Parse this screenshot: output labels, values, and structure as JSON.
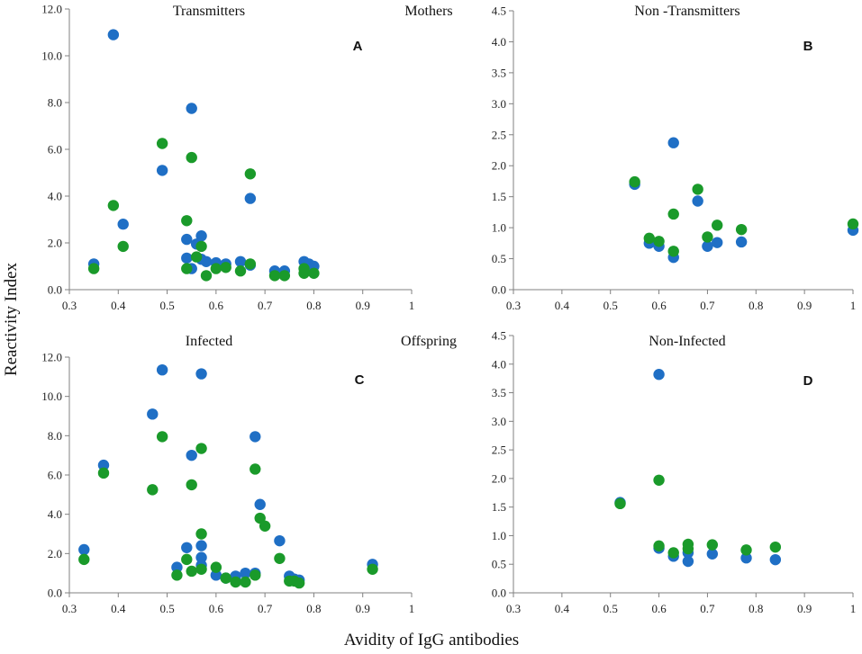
{
  "figure": {
    "ylabel": "Reactivity Index",
    "xlabel": "Avidity of IgG antibodies"
  },
  "colors": {
    "blue": "#1f6fc5",
    "green": "#1a9a2a",
    "axis": "#808080"
  },
  "chart_data": [
    {
      "type": "scatter",
      "letter": "A",
      "title_left": "Transmitters",
      "title_right": "Mothers",
      "xlim": [
        0.3,
        1.0
      ],
      "xticks": [
        "0.3",
        "0.4",
        "0.5",
        "0.6",
        "0.7",
        "0.8",
        "0.9",
        "1"
      ],
      "ylim": [
        0,
        12
      ],
      "yticks": [
        "0.0",
        "2.0",
        "4.0",
        "6.0",
        "8.0",
        "10.0",
        "12.0"
      ],
      "series": [
        {
          "name": "blue",
          "points": [
            [
              0.35,
              1.1
            ],
            [
              0.39,
              10.9
            ],
            [
              0.41,
              2.8
            ],
            [
              0.49,
              5.1
            ],
            [
              0.54,
              2.15
            ],
            [
              0.54,
              1.35
            ],
            [
              0.55,
              7.75
            ],
            [
              0.55,
              0.9
            ],
            [
              0.56,
              1.95
            ],
            [
              0.57,
              2.3
            ],
            [
              0.57,
              1.3
            ],
            [
              0.58,
              1.2
            ],
            [
              0.6,
              1.15
            ],
            [
              0.62,
              1.1
            ],
            [
              0.65,
              1.2
            ],
            [
              0.67,
              3.9
            ],
            [
              0.67,
              1.05
            ],
            [
              0.72,
              0.8
            ],
            [
              0.74,
              0.8
            ],
            [
              0.78,
              1.2
            ],
            [
              0.79,
              1.1
            ],
            [
              0.8,
              1.0
            ]
          ]
        },
        {
          "name": "green",
          "points": [
            [
              0.35,
              0.9
            ],
            [
              0.39,
              3.6
            ],
            [
              0.41,
              1.85
            ],
            [
              0.49,
              6.25
            ],
            [
              0.54,
              2.95
            ],
            [
              0.54,
              0.9
            ],
            [
              0.55,
              5.65
            ],
            [
              0.56,
              1.4
            ],
            [
              0.57,
              1.85
            ],
            [
              0.58,
              0.6
            ],
            [
              0.6,
              0.9
            ],
            [
              0.62,
              0.95
            ],
            [
              0.65,
              0.8
            ],
            [
              0.67,
              4.95
            ],
            [
              0.67,
              1.1
            ],
            [
              0.72,
              0.6
            ],
            [
              0.74,
              0.6
            ],
            [
              0.78,
              0.7
            ],
            [
              0.78,
              0.9
            ],
            [
              0.8,
              0.7
            ]
          ]
        }
      ]
    },
    {
      "type": "scatter",
      "letter": "B",
      "title_left": "Non -Transmitters",
      "title_right": "",
      "xlim": [
        0.3,
        1.0
      ],
      "xticks": [
        "0.3",
        "0.4",
        "0.5",
        "0.6",
        "0.7",
        "0.8",
        "0.9",
        "1"
      ],
      "ylim": [
        0,
        4.5
      ],
      "yticks": [
        "0.0",
        "0.5",
        "1.0",
        "1.5",
        "2.0",
        "2.5",
        "3.0",
        "3.5",
        "4.0",
        "4.5"
      ],
      "series": [
        {
          "name": "blue",
          "points": [
            [
              0.55,
              1.7
            ],
            [
              0.58,
              0.75
            ],
            [
              0.6,
              0.7
            ],
            [
              0.63,
              2.37
            ],
            [
              0.63,
              0.52
            ],
            [
              0.68,
              1.43
            ],
            [
              0.7,
              0.7
            ],
            [
              0.72,
              0.76
            ],
            [
              0.77,
              0.77
            ],
            [
              1.0,
              0.96
            ]
          ]
        },
        {
          "name": "green",
          "points": [
            [
              0.55,
              1.74
            ],
            [
              0.58,
              0.83
            ],
            [
              0.6,
              0.78
            ],
            [
              0.63,
              1.22
            ],
            [
              0.63,
              0.62
            ],
            [
              0.68,
              1.62
            ],
            [
              0.7,
              0.85
            ],
            [
              0.72,
              1.04
            ],
            [
              0.77,
              0.97
            ],
            [
              1.0,
              1.06
            ]
          ]
        }
      ]
    },
    {
      "type": "scatter",
      "letter": "C",
      "title_left": "Infected",
      "title_right": "Offspring",
      "xlim": [
        0.3,
        1.0
      ],
      "xticks": [
        "0.3",
        "0.4",
        "0.5",
        "0.6",
        "0.7",
        "0.8",
        "0.9",
        "1"
      ],
      "ylim": [
        0,
        12
      ],
      "yticks": [
        "0.0",
        "2.0",
        "4.0",
        "6.0",
        "8.0",
        "10.0",
        "12.0"
      ],
      "series": [
        {
          "name": "blue",
          "points": [
            [
              0.33,
              2.2
            ],
            [
              0.37,
              6.5
            ],
            [
              0.47,
              9.1
            ],
            [
              0.49,
              11.35
            ],
            [
              0.52,
              1.3
            ],
            [
              0.54,
              2.3
            ],
            [
              0.55,
              7.0
            ],
            [
              0.57,
              11.15
            ],
            [
              0.57,
              2.4
            ],
            [
              0.57,
              1.8
            ],
            [
              0.57,
              1.4
            ],
            [
              0.6,
              0.9
            ],
            [
              0.62,
              0.75
            ],
            [
              0.64,
              0.85
            ],
            [
              0.66,
              1.0
            ],
            [
              0.68,
              7.95
            ],
            [
              0.68,
              1.0
            ],
            [
              0.69,
              4.5
            ],
            [
              0.73,
              2.65
            ],
            [
              0.75,
              0.85
            ],
            [
              0.76,
              0.7
            ],
            [
              0.77,
              0.65
            ],
            [
              0.92,
              1.45
            ]
          ]
        },
        {
          "name": "green",
          "points": [
            [
              0.33,
              1.7
            ],
            [
              0.37,
              6.1
            ],
            [
              0.47,
              5.25
            ],
            [
              0.49,
              7.95
            ],
            [
              0.52,
              0.9
            ],
            [
              0.54,
              1.7
            ],
            [
              0.55,
              5.5
            ],
            [
              0.55,
              1.1
            ],
            [
              0.57,
              7.35
            ],
            [
              0.57,
              3.0
            ],
            [
              0.57,
              1.2
            ],
            [
              0.6,
              1.3
            ],
            [
              0.62,
              0.75
            ],
            [
              0.64,
              0.55
            ],
            [
              0.66,
              0.55
            ],
            [
              0.68,
              6.3
            ],
            [
              0.68,
              0.9
            ],
            [
              0.69,
              3.8
            ],
            [
              0.7,
              3.4
            ],
            [
              0.73,
              1.75
            ],
            [
              0.75,
              0.6
            ],
            [
              0.76,
              0.6
            ],
            [
              0.77,
              0.5
            ],
            [
              0.92,
              1.2
            ]
          ]
        }
      ]
    },
    {
      "type": "scatter",
      "letter": "D",
      "title_left": "Non-Infected",
      "title_right": "",
      "xlim": [
        0.3,
        1.0
      ],
      "xticks": [
        "0.3",
        "0.4",
        "0.5",
        "0.6",
        "0.7",
        "0.8",
        "0.9",
        "1"
      ],
      "ylim": [
        0,
        4.5
      ],
      "yticks": [
        "0.0",
        "0.5",
        "1.0",
        "1.5",
        "2.0",
        "2.5",
        "3.0",
        "3.5",
        "4.0",
        "4.5"
      ],
      "series": [
        {
          "name": "blue",
          "points": [
            [
              0.52,
              1.58
            ],
            [
              0.6,
              3.82
            ],
            [
              0.6,
              0.78
            ],
            [
              0.63,
              0.64
            ],
            [
              0.66,
              0.55
            ],
            [
              0.66,
              0.7
            ],
            [
              0.71,
              0.68
            ],
            [
              0.78,
              0.61
            ],
            [
              0.84,
              0.58
            ]
          ]
        },
        {
          "name": "green",
          "points": [
            [
              0.52,
              1.56
            ],
            [
              0.6,
              1.97
            ],
            [
              0.6,
              0.82
            ],
            [
              0.63,
              0.7
            ],
            [
              0.66,
              0.77
            ],
            [
              0.66,
              0.85
            ],
            [
              0.71,
              0.84
            ],
            [
              0.78,
              0.75
            ],
            [
              0.84,
              0.8
            ]
          ]
        }
      ]
    }
  ]
}
